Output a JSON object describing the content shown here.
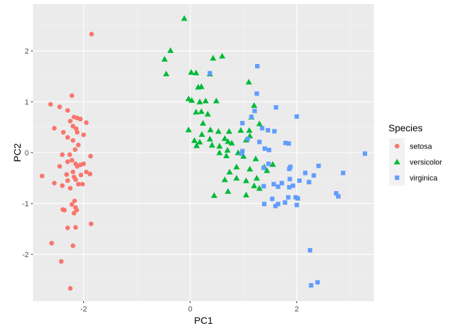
{
  "chart_data": {
    "type": "scatter",
    "title": "",
    "xlabel": "PC1",
    "ylabel": "PC2",
    "xlim": [
      -2.95,
      3.45
    ],
    "ylim": [
      -2.92,
      2.92
    ],
    "x_ticks": [
      -2,
      0,
      2
    ],
    "x_tick_labels": [
      "-2",
      "0",
      "2"
    ],
    "y_ticks": [
      -2,
      -1,
      0,
      1,
      2
    ],
    "y_tick_labels": [
      "-2",
      "-1",
      "0",
      "1",
      "2"
    ],
    "grid": true,
    "legend": {
      "title": "Species",
      "placement": "right"
    },
    "series": [
      {
        "name": "setosa",
        "color": "#F8766D",
        "shape": "circle",
        "points": [
          [
            -1.85,
            2.33
          ],
          [
            -2.22,
            1.12
          ],
          [
            -2.62,
            0.95
          ],
          [
            -2.45,
            0.9
          ],
          [
            -2.3,
            0.83
          ],
          [
            -2.18,
            0.7
          ],
          [
            -2.12,
            0.68
          ],
          [
            -2.06,
            0.66
          ],
          [
            -2.25,
            0.62
          ],
          [
            -1.95,
            0.59
          ],
          [
            -2.2,
            0.52
          ],
          [
            -2.14,
            0.47
          ],
          [
            -2.55,
            0.48
          ],
          [
            -2.38,
            0.4
          ],
          [
            -2.12,
            0.4
          ],
          [
            -2.0,
            0.35
          ],
          [
            -2.3,
            0.3
          ],
          [
            -2.2,
            0.24
          ],
          [
            -2.1,
            0.15
          ],
          [
            -2.16,
            0.06
          ],
          [
            -2.4,
            -0.04
          ],
          [
            -2.26,
            -0.04
          ],
          [
            -1.87,
            -0.07
          ],
          [
            -2.22,
            -0.15
          ],
          [
            -2.3,
            -0.18
          ],
          [
            -2.15,
            -0.22
          ],
          [
            -2.06,
            -0.24
          ],
          [
            -2.0,
            -0.22
          ],
          [
            -2.12,
            -0.27
          ],
          [
            -2.45,
            -0.27
          ],
          [
            -1.95,
            -0.38
          ],
          [
            -2.2,
            -0.38
          ],
          [
            -2.32,
            -0.43
          ],
          [
            -2.05,
            -0.44
          ],
          [
            -1.88,
            -0.42
          ],
          [
            -2.18,
            -0.48
          ],
          [
            -2.78,
            -0.46
          ],
          [
            -2.3,
            -0.55
          ],
          [
            -2.15,
            -0.53
          ],
          [
            -2.55,
            -0.6
          ],
          [
            -2.1,
            -0.62
          ],
          [
            -2.4,
            -0.65
          ],
          [
            -2.02,
            -0.62
          ],
          [
            -2.25,
            -0.7
          ],
          [
            -2.17,
            -0.95
          ],
          [
            -2.22,
            -1.02
          ],
          [
            -2.15,
            -1.08
          ],
          [
            -2.39,
            -1.12
          ],
          [
            -2.36,
            -1.13
          ],
          [
            -2.13,
            -1.13
          ],
          [
            -2.18,
            -1.19
          ],
          [
            -2.15,
            -1.47
          ],
          [
            -2.3,
            -1.48
          ],
          [
            -2.2,
            -1.83
          ],
          [
            -1.86,
            -1.4
          ],
          [
            -2.6,
            -1.78
          ],
          [
            -2.42,
            -2.14
          ],
          [
            -2.25,
            -2.67
          ]
        ]
      },
      {
        "name": "versicolor",
        "color": "#00BA38",
        "shape": "triangle",
        "points": [
          [
            -0.11,
            2.64
          ],
          [
            -0.37,
            2.01
          ],
          [
            -0.48,
            1.84
          ],
          [
            0.43,
            1.86
          ],
          [
            0.6,
            1.9
          ],
          [
            -0.45,
            1.55
          ],
          [
            0.02,
            1.58
          ],
          [
            0.11,
            1.57
          ],
          [
            0.37,
            1.55
          ],
          [
            0.21,
            1.3
          ],
          [
            0.15,
            1.29
          ],
          [
            -0.03,
            1.06
          ],
          [
            0.03,
            1.03
          ],
          [
            0.18,
            1.0
          ],
          [
            0.29,
            1.02
          ],
          [
            0.49,
            1.02
          ],
          [
            0.11,
            0.8
          ],
          [
            0.33,
            0.76
          ],
          [
            0.21,
            0.81
          ],
          [
            1.1,
            1.39
          ],
          [
            1.2,
            0.93
          ],
          [
            1.15,
            0.7
          ],
          [
            0.24,
            0.58
          ],
          [
            0.38,
            0.45
          ],
          [
            0.53,
            0.42
          ],
          [
            0.73,
            0.42
          ],
          [
            0.22,
            0.36
          ],
          [
            -0.03,
            0.45
          ],
          [
            0.95,
            0.44
          ],
          [
            1.11,
            0.44
          ],
          [
            1.3,
            0.57
          ],
          [
            0.08,
            0.24
          ],
          [
            0.37,
            0.27
          ],
          [
            0.18,
            0.21
          ],
          [
            0.12,
            0.14
          ],
          [
            0.41,
            0.15
          ],
          [
            0.71,
            0.22
          ],
          [
            0.65,
            0.28
          ],
          [
            0.78,
            0.19
          ],
          [
            1.12,
            0.33
          ],
          [
            1.05,
            0.25
          ],
          [
            0.55,
            0.13
          ],
          [
            0.7,
            0.05
          ],
          [
            0.9,
            0.0
          ],
          [
            0.55,
            0.0
          ],
          [
            0.68,
            -0.06
          ],
          [
            1.0,
            -0.07
          ],
          [
            1.23,
            -0.12
          ],
          [
            0.87,
            -0.28
          ],
          [
            1.12,
            -0.32
          ],
          [
            0.74,
            -0.38
          ],
          [
            0.87,
            -0.5
          ],
          [
            1.05,
            -0.55
          ],
          [
            1.25,
            -0.5
          ],
          [
            1.39,
            -0.28
          ],
          [
            0.65,
            -0.53
          ],
          [
            0.71,
            -0.76
          ],
          [
            1.2,
            -0.65
          ],
          [
            1.05,
            -0.83
          ],
          [
            1.3,
            -0.7
          ],
          [
            0.45,
            -0.84
          ],
          [
            1.44,
            -0.35
          ],
          [
            1.55,
            -0.23
          ]
        ]
      },
      {
        "name": "virginica",
        "color": "#619CFF",
        "shape": "square",
        "points": [
          [
            1.26,
            1.7
          ],
          [
            0.37,
            1.56
          ],
          [
            1.25,
            1.16
          ],
          [
            1.61,
            0.89
          ],
          [
            1.21,
            0.82
          ],
          [
            1.15,
            0.7
          ],
          [
            2.0,
            0.71
          ],
          [
            0.98,
            0.58
          ],
          [
            1.35,
            0.48
          ],
          [
            1.46,
            0.44
          ],
          [
            1.58,
            0.42
          ],
          [
            1.08,
            0.27
          ],
          [
            1.3,
            0.21
          ],
          [
            1.79,
            0.19
          ],
          [
            1.85,
            0.18
          ],
          [
            1.4,
            0.08
          ],
          [
            1.48,
            0.05
          ],
          [
            0.98,
            0.03
          ],
          [
            0.96,
            -0.02
          ],
          [
            3.28,
            -0.02
          ],
          [
            1.47,
            -0.22
          ],
          [
            1.88,
            -0.28
          ],
          [
            1.86,
            -0.32
          ],
          [
            2.41,
            -0.26
          ],
          [
            1.38,
            -0.3
          ],
          [
            1.87,
            -0.52
          ],
          [
            2.16,
            -0.4
          ],
          [
            2.87,
            -0.4
          ],
          [
            2.32,
            -0.45
          ],
          [
            2.05,
            -0.55
          ],
          [
            1.57,
            -0.62
          ],
          [
            2.23,
            -0.58
          ],
          [
            1.93,
            -0.65
          ],
          [
            1.38,
            -0.66
          ],
          [
            1.65,
            -0.67
          ],
          [
            1.72,
            -0.6
          ],
          [
            1.86,
            -0.68
          ],
          [
            2.74,
            -0.8
          ],
          [
            2.78,
            -0.86
          ],
          [
            1.84,
            -0.88
          ],
          [
            1.98,
            -0.88
          ],
          [
            2.02,
            -0.9
          ],
          [
            1.54,
            -0.91
          ],
          [
            1.39,
            -1.01
          ],
          [
            1.65,
            -1.01
          ],
          [
            1.78,
            -0.98
          ],
          [
            2.0,
            -1.03
          ],
          [
            1.6,
            -1.05
          ],
          [
            2.25,
            -1.92
          ],
          [
            2.27,
            -2.61
          ],
          [
            2.39,
            -2.55
          ]
        ]
      }
    ]
  }
}
